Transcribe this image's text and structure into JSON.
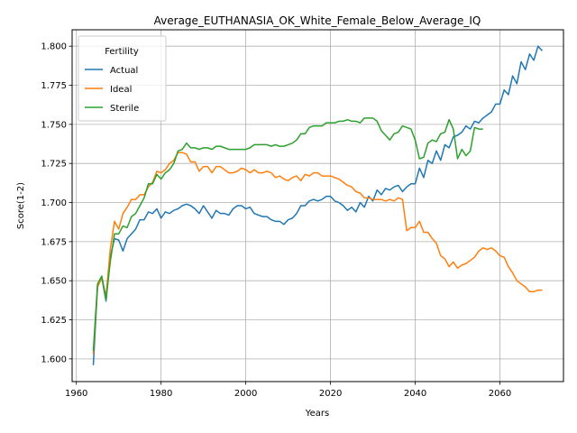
{
  "chart_data": {
    "type": "line",
    "title": "Average_EUTHANASIA_OK_White_Female_Below_Average_IQ",
    "xlabel": "Years",
    "ylabel": "Score(1-2)",
    "xlim": [
      1959,
      2075
    ],
    "ylim": [
      1.5855,
      1.8105
    ],
    "xticks": [
      1960,
      1980,
      2000,
      2020,
      2040,
      2060
    ],
    "yticks": [
      1.6,
      1.625,
      1.65,
      1.675,
      1.7,
      1.725,
      1.75,
      1.775,
      1.8
    ],
    "ytick_labels": [
      "1.600",
      "1.625",
      "1.650",
      "1.675",
      "1.700",
      "1.725",
      "1.750",
      "1.775",
      "1.800"
    ],
    "grid": true,
    "legend": {
      "title": "Fertility",
      "position": "top-left"
    },
    "series": [
      {
        "name": "Actual",
        "color": "#1f77b4",
        "x": [
          1964,
          1965,
          1966,
          1967,
          1968,
          1969,
          1970,
          1971,
          1972,
          1973,
          1974,
          1975,
          1976,
          1977,
          1978,
          1979,
          1980,
          1981,
          1982,
          1983,
          1984,
          1985,
          1986,
          1987,
          1988,
          1989,
          1990,
          1991,
          1992,
          1993,
          1994,
          1995,
          1996,
          1997,
          1998,
          1999,
          2000,
          2001,
          2002,
          2003,
          2004,
          2005,
          2006,
          2007,
          2008,
          2009,
          2010,
          2011,
          2012,
          2013,
          2014,
          2015,
          2016,
          2017,
          2018,
          2019,
          2020,
          2021,
          2022,
          2023,
          2024,
          2025,
          2026,
          2027,
          2028,
          2029,
          2030,
          2031,
          2032,
          2033,
          2034,
          2035,
          2036,
          2037,
          2038,
          2039,
          2040,
          2041,
          2042,
          2043,
          2044,
          2045,
          2046,
          2047,
          2048,
          2049,
          2050,
          2051,
          2052,
          2053,
          2054,
          2055,
          2056,
          2057,
          2058,
          2059,
          2060,
          2061,
          2062,
          2063,
          2064,
          2065,
          2066,
          2067,
          2068,
          2069,
          2070
        ],
        "y": [
          1.596,
          1.646,
          1.652,
          1.637,
          1.665,
          1.677,
          1.676,
          1.669,
          1.677,
          1.68,
          1.683,
          1.689,
          1.689,
          1.694,
          1.693,
          1.696,
          1.69,
          1.694,
          1.693,
          1.695,
          1.696,
          1.698,
          1.699,
          1.698,
          1.696,
          1.693,
          1.698,
          1.694,
          1.69,
          1.695,
          1.693,
          1.693,
          1.692,
          1.696,
          1.698,
          1.698,
          1.696,
          1.697,
          1.693,
          1.692,
          1.691,
          1.691,
          1.689,
          1.688,
          1.688,
          1.686,
          1.689,
          1.69,
          1.693,
          1.698,
          1.698,
          1.701,
          1.702,
          1.701,
          1.702,
          1.704,
          1.704,
          1.701,
          1.7,
          1.698,
          1.695,
          1.697,
          1.694,
          1.7,
          1.697,
          1.704,
          1.701,
          1.708,
          1.705,
          1.709,
          1.708,
          1.71,
          1.711,
          1.707,
          1.71,
          1.712,
          1.712,
          1.722,
          1.716,
          1.727,
          1.725,
          1.733,
          1.727,
          1.737,
          1.735,
          1.742,
          1.743,
          1.745,
          1.749,
          1.747,
          1.752,
          1.751,
          1.754,
          1.756,
          1.758,
          1.763,
          1.763,
          1.772,
          1.769,
          1.781,
          1.776,
          1.79,
          1.785,
          1.795,
          1.791,
          1.8,
          1.797
        ]
      },
      {
        "name": "Ideal",
        "color": "#ff7f0e",
        "x": [
          1964,
          1965,
          1966,
          1967,
          1968,
          1969,
          1970,
          1971,
          1972,
          1973,
          1974,
          1975,
          1976,
          1977,
          1978,
          1979,
          1980,
          1981,
          1982,
          1983,
          1984,
          1985,
          1986,
          1987,
          1988,
          1989,
          1990,
          1991,
          1992,
          1993,
          1994,
          1995,
          1996,
          1997,
          1998,
          1999,
          2000,
          2001,
          2002,
          2003,
          2004,
          2005,
          2006,
          2007,
          2008,
          2009,
          2010,
          2011,
          2012,
          2013,
          2014,
          2015,
          2016,
          2017,
          2018,
          2019,
          2020,
          2021,
          2022,
          2023,
          2024,
          2025,
          2026,
          2027,
          2028,
          2029,
          2030,
          2031,
          2032,
          2033,
          2034,
          2035,
          2036,
          2037,
          2038,
          2039,
          2040,
          2041,
          2042,
          2043,
          2044,
          2045,
          2046,
          2047,
          2048,
          2049,
          2050,
          2051,
          2052,
          2053,
          2054,
          2055,
          2056,
          2057,
          2058,
          2059,
          2060,
          2061,
          2062,
          2063,
          2064,
          2065,
          2066,
          2067,
          2068,
          2069,
          2070
        ],
        "y": [
          1.603,
          1.646,
          1.652,
          1.64,
          1.67,
          1.688,
          1.683,
          1.693,
          1.697,
          1.702,
          1.702,
          1.705,
          1.705,
          1.71,
          1.713,
          1.72,
          1.719,
          1.721,
          1.725,
          1.727,
          1.732,
          1.732,
          1.731,
          1.726,
          1.726,
          1.72,
          1.723,
          1.723,
          1.719,
          1.723,
          1.723,
          1.721,
          1.719,
          1.719,
          1.72,
          1.722,
          1.721,
          1.719,
          1.721,
          1.719,
          1.719,
          1.72,
          1.719,
          1.716,
          1.717,
          1.715,
          1.714,
          1.716,
          1.717,
          1.714,
          1.718,
          1.717,
          1.719,
          1.719,
          1.717,
          1.717,
          1.717,
          1.716,
          1.715,
          1.713,
          1.711,
          1.71,
          1.707,
          1.706,
          1.703,
          1.703,
          1.702,
          1.702,
          1.702,
          1.701,
          1.702,
          1.701,
          1.703,
          1.702,
          1.682,
          1.684,
          1.684,
          1.688,
          1.681,
          1.681,
          1.677,
          1.674,
          1.666,
          1.664,
          1.659,
          1.662,
          1.658,
          1.66,
          1.661,
          1.663,
          1.665,
          1.669,
          1.671,
          1.67,
          1.671,
          1.669,
          1.666,
          1.665,
          1.659,
          1.655,
          1.65,
          1.648,
          1.646,
          1.643,
          1.643,
          1.644,
          1.644
        ]
      },
      {
        "name": "Sterile",
        "color": "#2ca02c",
        "x": [
          1964,
          1965,
          1966,
          1967,
          1968,
          1969,
          1970,
          1971,
          1972,
          1973,
          1974,
          1975,
          1976,
          1977,
          1978,
          1979,
          1980,
          1981,
          1982,
          1983,
          1984,
          1985,
          1986,
          1987,
          1988,
          1989,
          1990,
          1991,
          1992,
          1993,
          1994,
          1995,
          1996,
          1997,
          1998,
          1999,
          2000,
          2001,
          2002,
          2003,
          2004,
          2005,
          2006,
          2007,
          2008,
          2009,
          2010,
          2011,
          2012,
          2013,
          2014,
          2015,
          2016,
          2017,
          2018,
          2019,
          2020,
          2021,
          2022,
          2023,
          2024,
          2025,
          2026,
          2027,
          2028,
          2029,
          2030,
          2031,
          2032,
          2033,
          2034,
          2035,
          2036,
          2037,
          2038,
          2039,
          2040,
          2041,
          2042,
          2043,
          2044,
          2045,
          2046,
          2047,
          2048,
          2049,
          2050,
          2051,
          2052,
          2053,
          2054,
          2055,
          2056
        ],
        "y": [
          1.605,
          1.648,
          1.653,
          1.638,
          1.662,
          1.68,
          1.68,
          1.685,
          1.684,
          1.691,
          1.693,
          1.698,
          1.703,
          1.712,
          1.712,
          1.718,
          1.715,
          1.719,
          1.721,
          1.725,
          1.733,
          1.734,
          1.738,
          1.735,
          1.735,
          1.734,
          1.735,
          1.735,
          1.734,
          1.736,
          1.736,
          1.735,
          1.734,
          1.734,
          1.734,
          1.734,
          1.734,
          1.735,
          1.737,
          1.737,
          1.737,
          1.737,
          1.736,
          1.737,
          1.736,
          1.736,
          1.737,
          1.738,
          1.74,
          1.744,
          1.744,
          1.748,
          1.749,
          1.749,
          1.749,
          1.751,
          1.751,
          1.751,
          1.752,
          1.752,
          1.753,
          1.752,
          1.752,
          1.751,
          1.754,
          1.754,
          1.754,
          1.752,
          1.746,
          1.743,
          1.74,
          1.744,
          1.745,
          1.749,
          1.748,
          1.747,
          1.74,
          1.728,
          1.729,
          1.738,
          1.74,
          1.739,
          1.744,
          1.745,
          1.753,
          1.747,
          1.728,
          1.734,
          1.73,
          1.733,
          1.748,
          1.747,
          1.747
        ]
      }
    ]
  }
}
